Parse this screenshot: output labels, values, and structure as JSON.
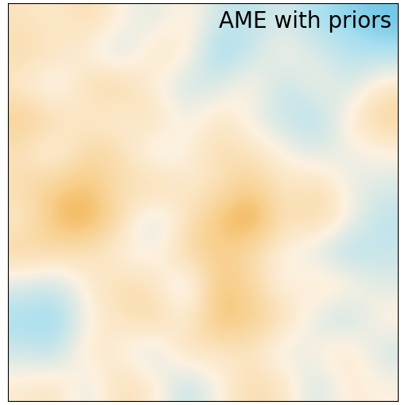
{
  "chart_data": {
    "type": "heatmap",
    "annotation": "AME with priors",
    "tick_labels": false,
    "color_range": [
      -1,
      1
    ],
    "cells": [
      [
        0.2,
        0.1,
        0.3,
        0.0,
        -0.2,
        0.1,
        -0.3,
        -0.4,
        -0.2,
        -0.5,
        -0.6,
        -0.7
      ],
      [
        0.3,
        0.2,
        0.0,
        -0.3,
        0.2,
        0.1,
        -0.6,
        -0.3,
        0.0,
        -0.2,
        -0.4,
        -0.5
      ],
      [
        0.1,
        -0.2,
        0.3,
        0.4,
        0.0,
        -0.3,
        -0.2,
        0.1,
        -0.4,
        0.0,
        -0.3,
        0.2
      ],
      [
        0.5,
        0.3,
        0.1,
        0.0,
        0.3,
        -0.1,
        0.2,
        -0.1,
        -0.3,
        -0.5,
        0.1,
        0.4
      ],
      [
        0.2,
        -0.1,
        0.4,
        0.3,
        -0.2,
        0.0,
        0.3,
        0.2,
        0.0,
        -0.2,
        -0.1,
        0.0
      ],
      [
        0.3,
        0.5,
        0.6,
        0.2,
        0.4,
        0.1,
        0.2,
        0.5,
        0.1,
        0.3,
        -0.1,
        -0.2
      ],
      [
        0.1,
        0.7,
        0.8,
        0.3,
        -0.3,
        0.2,
        0.6,
        0.9,
        0.2,
        0.4,
        0.0,
        -0.4
      ],
      [
        0.4,
        0.3,
        0.2,
        0.0,
        -0.1,
        0.4,
        0.5,
        0.3,
        0.0,
        -0.2,
        -0.5,
        -0.3
      ],
      [
        -0.2,
        -0.3,
        0.1,
        0.3,
        0.2,
        -0.3,
        0.6,
        0.4,
        -0.1,
        0.2,
        0.1,
        -0.2
      ],
      [
        -0.5,
        -0.6,
        0.0,
        0.2,
        0.4,
        0.0,
        0.7,
        0.5,
        0.3,
        -0.2,
        -0.4,
        0.1
      ],
      [
        -0.3,
        -0.4,
        0.2,
        0.0,
        -0.3,
        0.3,
        0.1,
        0.2,
        -0.2,
        0.0,
        0.2,
        -0.3
      ],
      [
        0.1,
        0.2,
        -0.2,
        0.3,
        0.1,
        -0.4,
        0.0,
        0.3,
        0.2,
        -0.3,
        0.1,
        0.0
      ]
    ]
  }
}
